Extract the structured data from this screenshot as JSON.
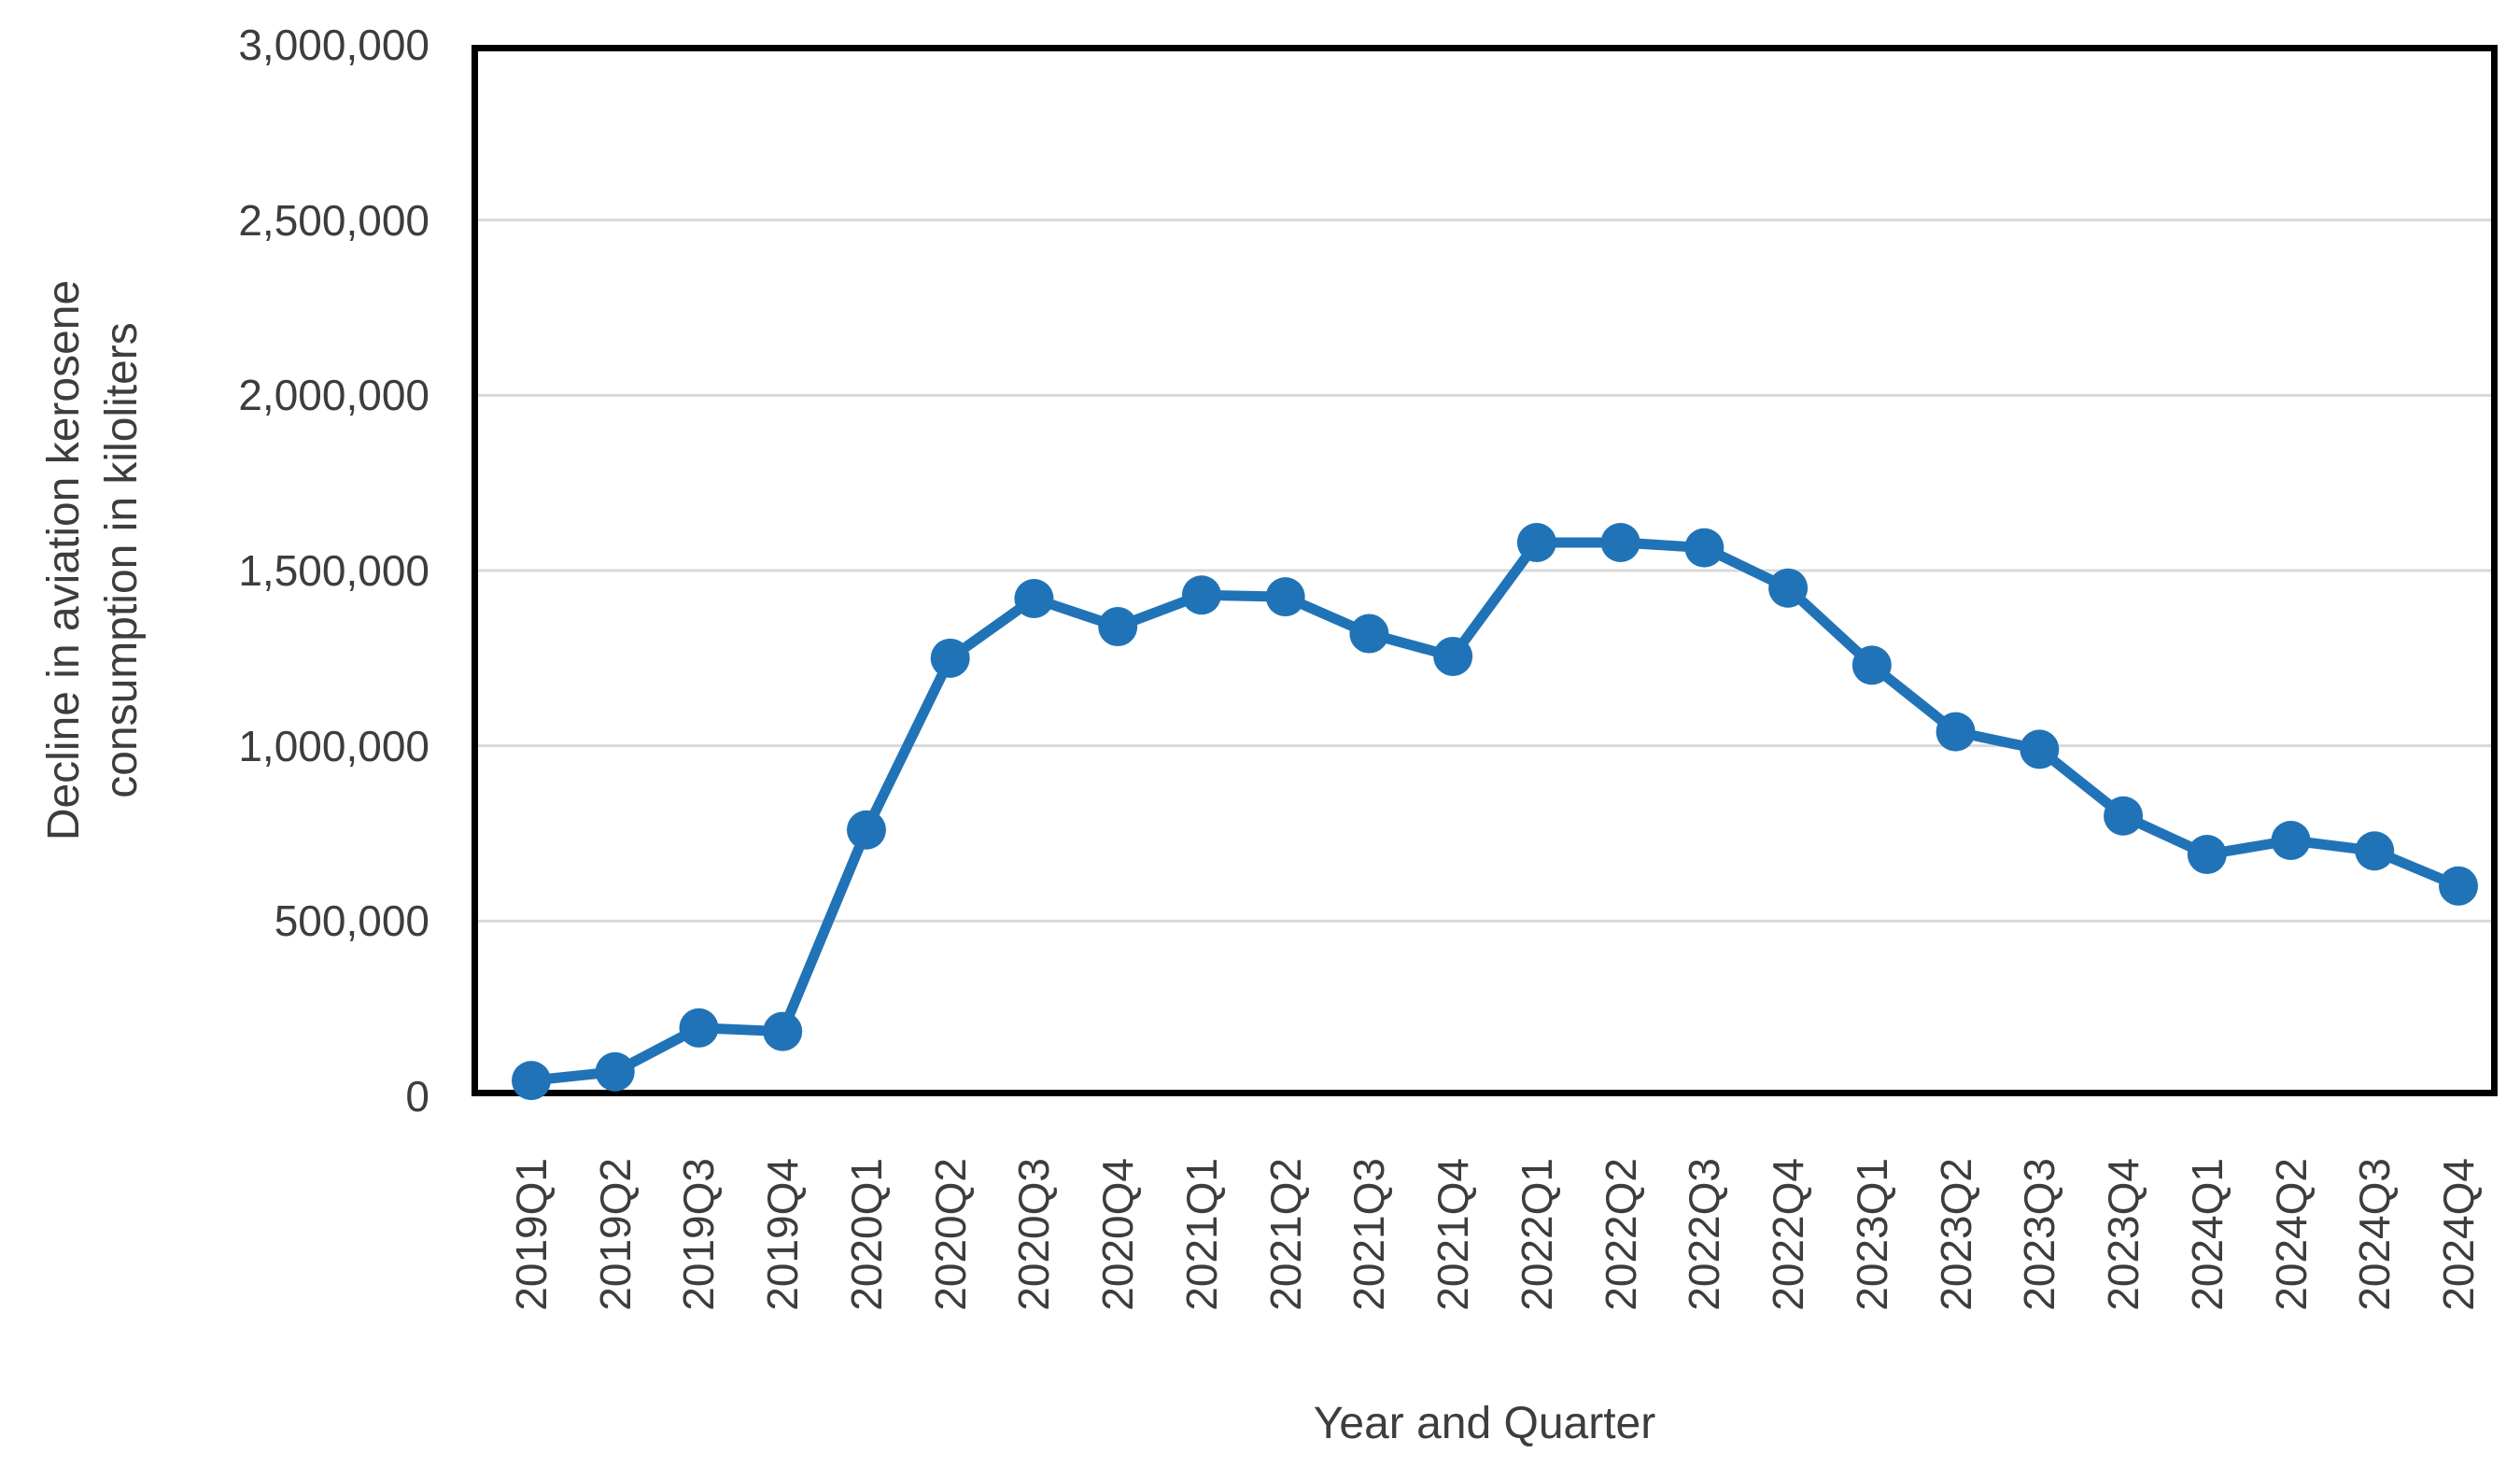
{
  "page": {
    "background": "#ffffff"
  },
  "chart_data": {
    "type": "line",
    "title": "",
    "xlabel": "Year and Quarter",
    "ylabel": "Decline in aviation kerosene consumption in kiloliters",
    "ylabel_lines": [
      "Decline in aviation kerosene",
      "consumption in kiloliters"
    ],
    "categories": [
      "2019Q1",
      "2019Q2",
      "2019Q3",
      "2019Q4",
      "2020Q1",
      "2020Q2",
      "2020Q3",
      "2020Q4",
      "2021Q1",
      "2021Q2",
      "2021Q3",
      "2021Q4",
      "2022Q1",
      "2022Q2",
      "2022Q3",
      "2022Q4",
      "2023Q1",
      "2023Q2",
      "2023Q3",
      "2023Q4",
      "2024Q1",
      "2024Q2",
      "2024Q3",
      "2024Q4"
    ],
    "values": [
      45000,
      70000,
      195000,
      185000,
      760000,
      1250000,
      1420000,
      1340000,
      1430000,
      1425000,
      1320000,
      1255000,
      1580000,
      1580000,
      1565000,
      1450000,
      1230000,
      1040000,
      990000,
      800000,
      690000,
      730000,
      700000,
      600000
    ],
    "ylim": [
      0,
      3000000
    ],
    "ytick_step": 500000,
    "ytick_labels": [
      "0",
      "500,000",
      "1,000,000",
      "1,500,000",
      "2,000,000",
      "2,500,000",
      "3,000,000"
    ],
    "grid": "horizontal",
    "legend": "none",
    "line_color": "#2173B7",
    "marker": "circle",
    "gridline_color": "#D9D9D9",
    "axis_color": "#000000",
    "text_color": "#3D3D3D"
  }
}
